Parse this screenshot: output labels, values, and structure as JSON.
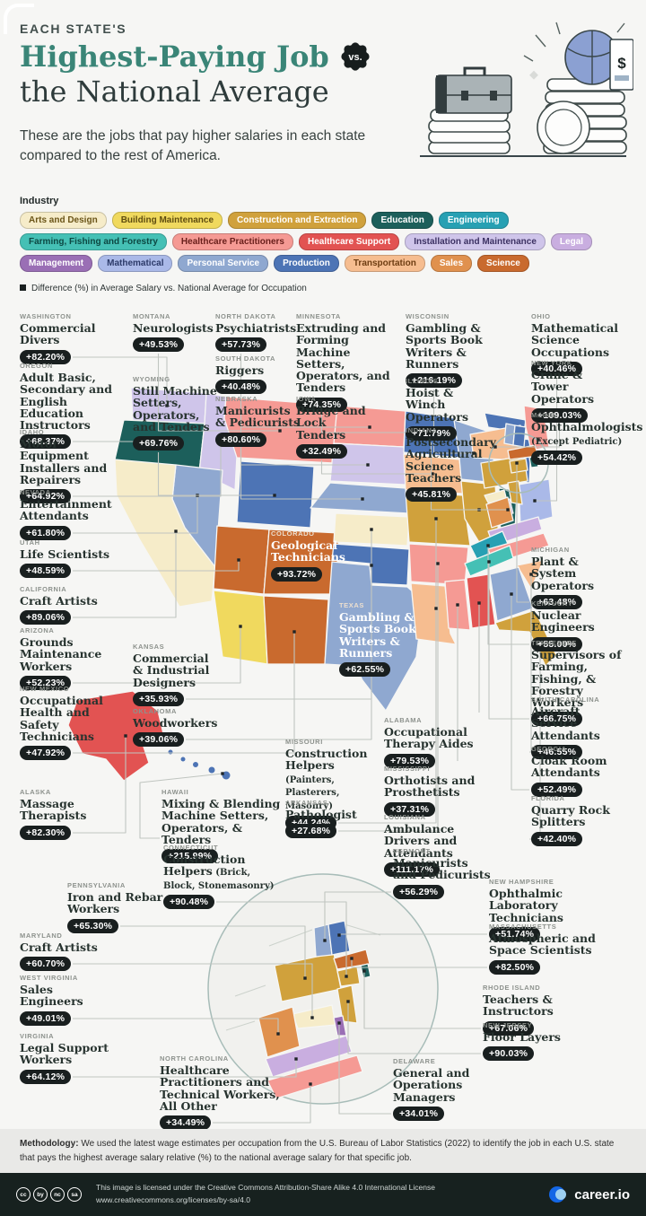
{
  "header": {
    "kicker": "EACH STATE'S",
    "title_emphasis": "Highest-Paying Job",
    "vs_badge": "vs.",
    "title_rest": "the National Average",
    "subtitle": "These are the jobs that pay higher salaries in each state compared to the rest of America."
  },
  "legend": {
    "heading": "Industry",
    "note": "Difference (%) in Average Salary vs. National Average for Occupation",
    "industries": [
      {
        "label": "Arts and Design",
        "bg": "#f6ecc9",
        "fg": "#6b5518"
      },
      {
        "label": "Building Maintenance",
        "bg": "#f0d95e",
        "fg": "#5f4d10"
      },
      {
        "label": "Construction and Extraction",
        "bg": "#d0a13c",
        "fg": "#ffffff"
      },
      {
        "label": "Education",
        "bg": "#1c5f5b",
        "fg": "#ffffff"
      },
      {
        "label": "Engineering",
        "bg": "#27a0b3",
        "fg": "#ffffff"
      },
      {
        "label": "Farming, Fishing and Forestry",
        "bg": "#45c0b5",
        "fg": "#0c4742"
      },
      {
        "label": "Healthcare Practitioners",
        "bg": "#f59a94",
        "fg": "#6a201c"
      },
      {
        "label": "Healthcare Support",
        "bg": "#e25352",
        "fg": "#ffffff"
      },
      {
        "label": "Installation and Maintenance",
        "bg": "#cfc5ea",
        "fg": "#3c3163"
      },
      {
        "label": "Legal",
        "bg": "#c9aee0",
        "fg": "#ffffff"
      },
      {
        "label": "Management",
        "bg": "#9a6fb5",
        "fg": "#ffffff"
      },
      {
        "label": "Mathematical",
        "bg": "#aab9e8",
        "fg": "#2c3a69"
      },
      {
        "label": "Personal Service",
        "bg": "#8fa8d0",
        "fg": "#ffffff"
      },
      {
        "label": "Production",
        "bg": "#4d74b5",
        "fg": "#ffffff"
      },
      {
        "label": "Transportation",
        "bg": "#f6bd90",
        "fg": "#6e3d12"
      },
      {
        "label": "Sales",
        "bg": "#e0914e",
        "fg": "#ffffff"
      },
      {
        "label": "Science",
        "bg": "#c96a2e",
        "fg": "#ffffff"
      }
    ]
  },
  "chart_data": {
    "type": "table",
    "title": "Each State's Highest-Paying Job vs. the National Average",
    "unit": "Difference (%) in Average Salary vs. National Average for Occupation",
    "source": "U.S. Bureau of Labor Statistics (2022)",
    "columns": [
      "state",
      "occupation",
      "difference_pct",
      "industry"
    ],
    "states": [
      {
        "name": "WASHINGTON",
        "job": "Commercial Divers",
        "pct": "+82.20%",
        "industry": "Installation and Maintenance"
      },
      {
        "name": "OREGON",
        "job": "Adult Basic, Secondary and English Education Instructors",
        "pct": "+68.37%",
        "industry": "Education"
      },
      {
        "name": "IDAHO",
        "job": "Motor Equipment Installers and Repairers",
        "pct": "+64.92%",
        "industry": "Installation and Maintenance"
      },
      {
        "name": "NEVADA",
        "job": "Entertainment Attendants",
        "pct": "+61.80%",
        "industry": "Personal Service"
      },
      {
        "name": "UTAH",
        "job": "Life Scientists",
        "pct": "+48.59%",
        "industry": "Science"
      },
      {
        "name": "CALIFORNIA",
        "job": "Craft Artists",
        "pct": "+89.06%",
        "industry": "Arts and Design"
      },
      {
        "name": "ARIZONA",
        "job": "Grounds Maintenance Workers",
        "pct": "+52.23%",
        "industry": "Building Maintenance"
      },
      {
        "name": "NEW MEXICO",
        "job": "Occupational Health and Safety Technicians",
        "pct": "+47.92%",
        "industry": "Science"
      },
      {
        "name": "ALASKA",
        "job": "Massage Therapists",
        "pct": "+82.30%",
        "industry": "Healthcare Support"
      },
      {
        "name": "MONTANA",
        "job": "Neurologists",
        "pct": "+49.53%",
        "industry": "Healthcare Practitioners"
      },
      {
        "name": "WYOMING",
        "job": "Still Machine Setters, Operators, and Tenders",
        "pct": "+69.76%",
        "industry": "Production"
      },
      {
        "name": "KANSAS",
        "job": "Commercial & Industrial Designers",
        "pct": "+35.93%",
        "industry": "Arts and Design"
      },
      {
        "name": "OKLAHOMA",
        "job": "Woodworkers",
        "pct": "+39.06%",
        "industry": "Production"
      },
      {
        "name": "HAWAII",
        "job": "Mixing & Blending Machine Setters, Operators, & Tenders",
        "pct": "+215.99%",
        "industry": "Production"
      },
      {
        "name": "CONNECTICUT",
        "job": "Construction Helpers",
        "suffix": "(Brick, Block, Stonemasonry)",
        "pct": "+90.48%",
        "industry": "Construction and Extraction"
      },
      {
        "name": "NORTH DAKOTA",
        "job": "Psychiatrists",
        "pct": "+57.73%",
        "industry": "Healthcare Practitioners"
      },
      {
        "name": "SOUTH DAKOTA",
        "job": "Riggers",
        "pct": "+40.48%",
        "industry": "Installation and Maintenance"
      },
      {
        "name": "NEBRASKA",
        "job": "Manicurists & Pedicurists",
        "pct": "+80.60%",
        "industry": "Personal Service"
      },
      {
        "name": "COLORADO",
        "job": "Geological Technicians",
        "pct": "+93.72%",
        "industry": "Science"
      },
      {
        "name": "TEXAS",
        "job": "Gambling & Sports Book Writers & Runners",
        "pct": "+62.55%",
        "industry": "Personal Service"
      },
      {
        "name": "MINNESOTA",
        "job": "Extruding and Forming Machine Setters, Operators, and Tenders",
        "pct": "+74.35%",
        "industry": "Production"
      },
      {
        "name": "IOWA",
        "job": "Bridge and Lock Tenders",
        "pct": "+32.49%",
        "industry": "Transportation"
      },
      {
        "name": "MISSOURI",
        "job": "Construction Helpers",
        "suffix": "(Painters, Plasterers, Masonry)",
        "pct": "+44.24%",
        "industry": "Construction and Extraction"
      },
      {
        "name": "ARKANSAS",
        "job": "Pathologist",
        "pct": "+27.68%",
        "industry": "Healthcare Practitioners"
      },
      {
        "name": "WISCONSIN",
        "job": "Gambling & Sports Book Writers & Runners",
        "pct": "+216.19%",
        "industry": "Personal Service"
      },
      {
        "name": "ILLINOIS",
        "job": "Hoist & Winch Operators",
        "pct": "+71.79%",
        "industry": "Construction and Extraction"
      },
      {
        "name": "INDIANA",
        "job": "Postsecondary Agricultural Science Teachers",
        "pct": "+45.81%",
        "industry": "Education"
      },
      {
        "name": "ALABAMA",
        "job": "Occupational Therapy Aides",
        "pct": "+79.53%",
        "industry": "Healthcare Support"
      },
      {
        "name": "MISSISSIPPI",
        "job": "Orthotists and Prosthetists",
        "pct": "+37.31%",
        "industry": "Healthcare Practitioners"
      },
      {
        "name": "LOUISIANA",
        "job": "Ambulance Drivers and Attendants",
        "pct": "+111.17%",
        "industry": "Transportation"
      },
      {
        "name": "VERMONT",
        "job": "Manicurists and Pedicurists",
        "pct": "+56.29%",
        "industry": "Personal Service"
      },
      {
        "name": "OHIO",
        "job": "Mathematical Science Occupations",
        "pct": "+40.46%",
        "industry": "Mathematical"
      },
      {
        "name": "NEW YORK",
        "job": "Crane & Tower Operators",
        "pct": "+109.03%",
        "industry": "Transportation"
      },
      {
        "name": "MAINE",
        "job": "Ophthalmologists",
        "suffix": "(Except Pediatric)",
        "pct": "+54.42%",
        "industry": "Healthcare Practitioners"
      },
      {
        "name": "MICHIGAN",
        "job": "Plant & System Operators",
        "pct": "+63.48%",
        "industry": "Production"
      },
      {
        "name": "KENTUCKY",
        "job": "Nuclear Engineers",
        "pct": "+55.00%",
        "industry": "Engineering"
      },
      {
        "name": "TENNESSEE",
        "job": "Supervisors of Farming, Fishing, & Forestry Workers",
        "pct": "+66.75%",
        "industry": "Farming, Fishing and Forestry"
      },
      {
        "name": "SOUTH CAROLINA",
        "job": "Aircraft Service Attendants",
        "pct": "+46.55%",
        "industry": "Transportation"
      },
      {
        "name": "GEORGIA",
        "job": "Cloak Room Attendants",
        "pct": "+52.49%",
        "industry": "Personal Service"
      },
      {
        "name": "FLORIDA",
        "job": "Quarry Rock Splitters",
        "pct": "+42.40%",
        "industry": "Construction and Extraction"
      },
      {
        "name": "PENNSYLVANIA",
        "job": "Iron and Rebar Workers",
        "pct": "+65.30%",
        "industry": "Construction and Extraction"
      },
      {
        "name": "MARYLAND",
        "job": "Craft Artists",
        "pct": "+60.70%",
        "industry": "Arts and Design"
      },
      {
        "name": "WEST VIRGINIA",
        "job": "Sales Engineers",
        "pct": "+49.01%",
        "industry": "Sales"
      },
      {
        "name": "VIRGINIA",
        "job": "Legal Support Workers",
        "pct": "+64.12%",
        "industry": "Legal"
      },
      {
        "name": "NORTH CAROLINA",
        "job": "Healthcare Practitioners and Technical Workers, All Other",
        "pct": "+34.49%",
        "industry": "Healthcare Practitioners"
      },
      {
        "name": "NEW HAMPSHIRE",
        "job": "Ophthalmic Laboratory Technicians",
        "pct": "+51.74%",
        "industry": "Production"
      },
      {
        "name": "MASSACHUSETTS",
        "job": "Atmospheric and Space Scientists",
        "pct": "+82.50%",
        "industry": "Science"
      },
      {
        "name": "RHODE ISLAND",
        "job": "Teachers & Instructors",
        "pct": "+67.06%",
        "industry": "Education"
      },
      {
        "name": "NEW JERSEY",
        "job": "Floor Layers",
        "pct": "+90.03%",
        "industry": "Construction and Extraction"
      },
      {
        "name": "DELAWARE",
        "job": "General and Operations Managers",
        "pct": "+34.01%",
        "industry": "Management"
      }
    ]
  },
  "footer": {
    "methodology_label": "Methodology:",
    "methodology_text": "We used the latest wage estimates per occupation from the U.S. Bureau of Labor Statistics (2022) to identify the job in each U.S. state that pays the highest average salary relative (%) to the national average salary for that specific job.",
    "cc_badges": [
      "cc",
      "by",
      "nc",
      "sa"
    ],
    "license_line1": "This image is licensed under the Creative Commons Attribution-Share Alike 4.0 International License",
    "license_line2": "www.creativecommons.org/licenses/by-sa/4.0",
    "brand": "career.io"
  }
}
